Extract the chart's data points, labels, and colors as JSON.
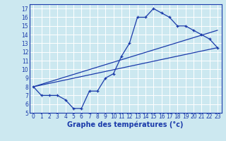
{
  "title": "Graphe des températures (°c)",
  "bg_color": "#cce8f0",
  "grid_color": "#ffffff",
  "line_color": "#1a3aaa",
  "xlim": [
    -0.5,
    23.5
  ],
  "ylim": [
    5,
    17.5
  ],
  "xticks": [
    0,
    1,
    2,
    3,
    4,
    5,
    6,
    7,
    8,
    9,
    10,
    11,
    12,
    13,
    14,
    15,
    16,
    17,
    18,
    19,
    20,
    21,
    22,
    23
  ],
  "yticks": [
    5,
    6,
    7,
    8,
    9,
    10,
    11,
    12,
    13,
    14,
    15,
    16,
    17
  ],
  "line1_x": [
    0,
    1,
    2,
    3,
    4,
    5,
    6,
    7,
    8,
    9,
    10,
    11,
    12,
    13,
    14,
    15,
    16,
    17,
    18,
    19,
    20,
    21,
    22,
    23
  ],
  "line1_y": [
    8,
    7,
    7,
    7,
    6.5,
    5.5,
    5.5,
    7.5,
    7.5,
    9,
    9.5,
    11.5,
    13,
    16,
    16,
    17,
    16.5,
    16,
    15,
    15,
    14.5,
    14,
    13.5,
    12.5
  ],
  "line2_x": [
    0,
    23
  ],
  "line2_y": [
    8,
    12.5
  ],
  "line3_x": [
    0,
    23
  ],
  "line3_y": [
    8,
    14.5
  ],
  "xlabel_fontsize": 7,
  "tick_fontsize": 5.5
}
